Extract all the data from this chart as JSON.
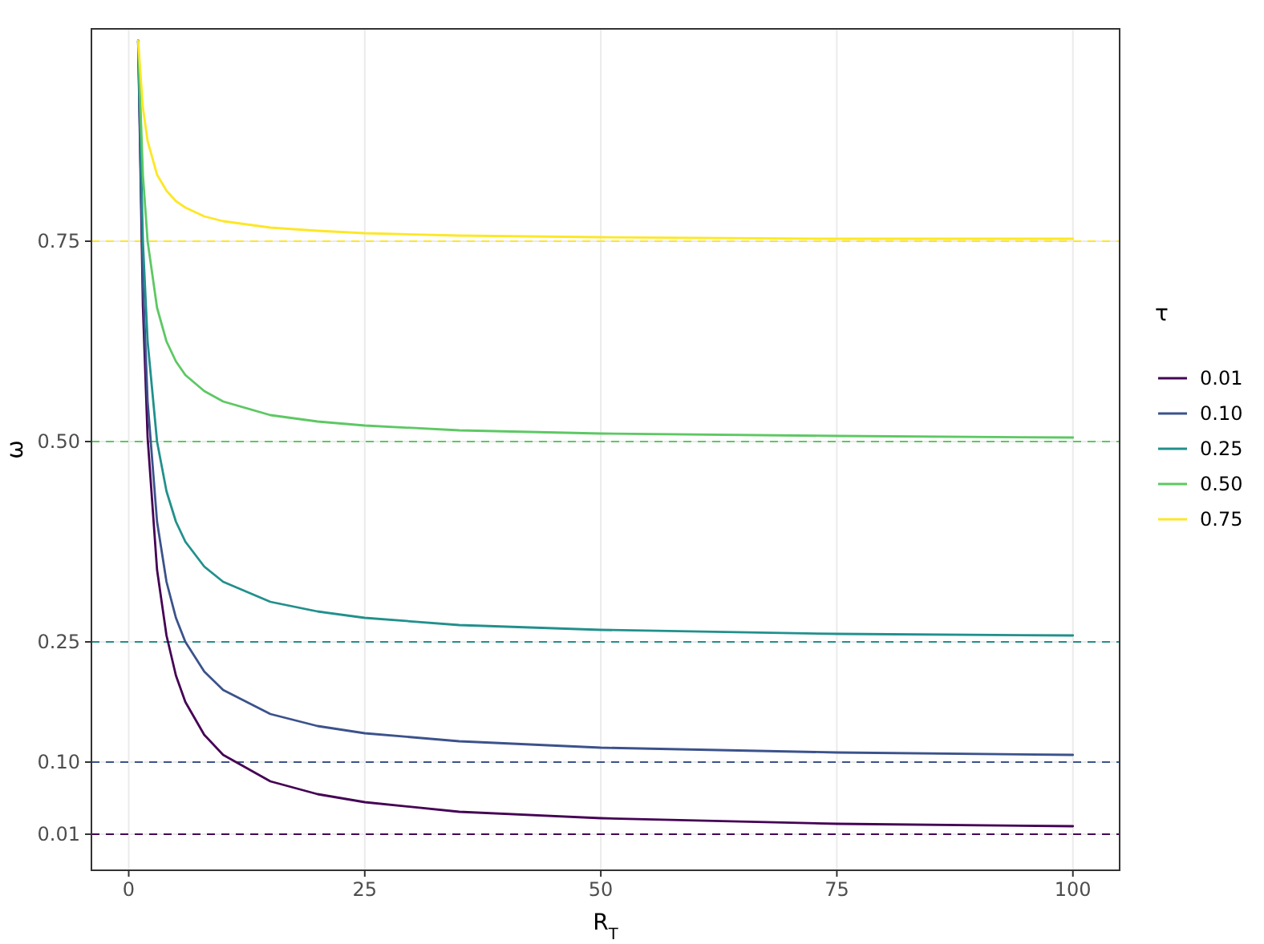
{
  "chart_data": {
    "type": "line",
    "xlabel": "R$_{T}$",
    "ylabel": "ω",
    "legend_title": "τ",
    "x": [
      1,
      1.5,
      2,
      3,
      4,
      5,
      6,
      8,
      10,
      15,
      20,
      25,
      35,
      50,
      75,
      100
    ],
    "series": [
      {
        "name": "0.01",
        "color": "#440154",
        "values": [
          1,
          0.67,
          0.505,
          0.34,
          0.258,
          0.208,
          0.175,
          0.134,
          0.109,
          0.076,
          0.06,
          0.05,
          0.038,
          0.03,
          0.023,
          0.02
        ]
      },
      {
        "name": "0.10",
        "color": "#3b528b",
        "values": [
          1,
          0.7,
          0.55,
          0.4,
          0.325,
          0.28,
          0.25,
          0.213,
          0.19,
          0.16,
          0.145,
          0.136,
          0.126,
          0.118,
          0.112,
          0.109
        ]
      },
      {
        "name": "0.25",
        "color": "#21908c",
        "values": [
          1,
          0.75,
          0.625,
          0.5,
          0.438,
          0.4,
          0.375,
          0.344,
          0.325,
          0.3,
          0.288,
          0.28,
          0.271,
          0.265,
          0.26,
          0.258
        ]
      },
      {
        "name": "0.50",
        "color": "#5dc863",
        "values": [
          1,
          0.833,
          0.75,
          0.667,
          0.625,
          0.6,
          0.583,
          0.563,
          0.55,
          0.533,
          0.525,
          0.52,
          0.514,
          0.51,
          0.507,
          0.505
        ]
      },
      {
        "name": "0.75",
        "color": "#fde725",
        "values": [
          1,
          0.917,
          0.875,
          0.833,
          0.813,
          0.8,
          0.792,
          0.781,
          0.775,
          0.767,
          0.763,
          0.76,
          0.757,
          0.755,
          0.753,
          0.753
        ]
      }
    ],
    "xlim": [
      -3.95,
      104.95
    ],
    "xticks": [
      0,
      25,
      50,
      75,
      100
    ],
    "ylim": [
      -0.035,
      1.015
    ],
    "yticks": [
      {
        "value": 0.01,
        "label": "0.01"
      },
      {
        "value": 0.1,
        "label": "0.10"
      },
      {
        "value": 0.25,
        "label": "0.25"
      },
      {
        "value": 0.5,
        "label": "0.50"
      },
      {
        "value": 0.75,
        "label": "0.75"
      }
    ],
    "ref_lines": [
      {
        "axis": "y",
        "value": 0.01,
        "color": "#440154",
        "line_style": "dashed"
      },
      {
        "axis": "y",
        "value": 0.1,
        "color": "#3b528b",
        "line_style": "dashed"
      },
      {
        "axis": "y",
        "value": 0.25,
        "color": "#21908c",
        "line_style": "dashed"
      },
      {
        "axis": "y",
        "value": 0.5,
        "color": "#5dc863",
        "line_style": "dashed"
      },
      {
        "axis": "y",
        "value": 0.75,
        "color": "#fde725",
        "line_style": "dashed"
      }
    ],
    "grid": true,
    "legend": "right",
    "line_style": "solid",
    "marker": "none"
  }
}
